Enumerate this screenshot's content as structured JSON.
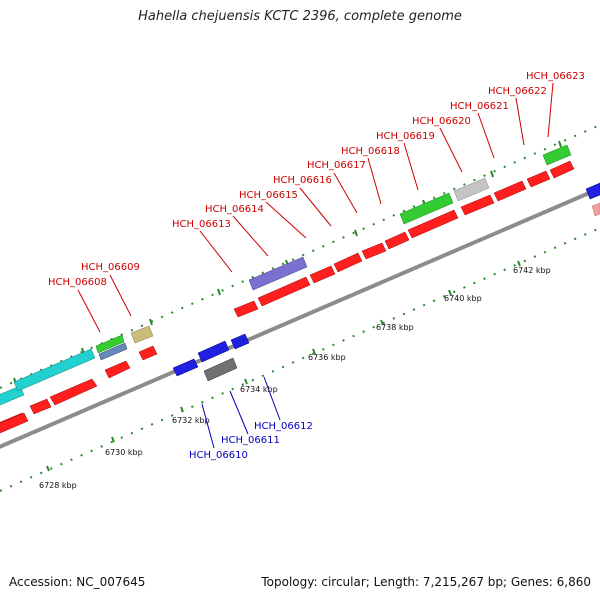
{
  "title": "Hahella chejuensis KCTC 2396, complete genome",
  "footer": {
    "accession": "Accession: NC_007645",
    "summary": "Topology: circular; Length: 7,215,267 bp; Genes: 6,860"
  },
  "colors": {
    "backbone": "#8c8c8c",
    "tick": "#2a8a2a",
    "upper_label": "#cc0000",
    "lower_label": "#0000bb",
    "red": "#ff1f1f",
    "blue": "#2020e0",
    "green": "#33cc33",
    "cyan": "#22d0d0",
    "purple": "#7b6fd0",
    "gray": "#c4c4c4",
    "darkgray": "#707070",
    "khaki": "#c8bd7a",
    "steel": "#6688bb",
    "pink": "#f0a0a0"
  },
  "scale": {
    "ticks": [
      {
        "label": "6728 kbp"
      },
      {
        "label": "6730 kbp"
      },
      {
        "label": "6732 kbp"
      },
      {
        "label": "6734 kbp"
      },
      {
        "label": "6736 kbp"
      },
      {
        "label": "6738 kbp"
      },
      {
        "label": "6740 kbp"
      },
      {
        "label": "6742 kbp"
      }
    ]
  },
  "upper_labels": [
    "HCH_06608",
    "HCH_06609",
    "HCH_06613",
    "HCH_06614",
    "HCH_06615",
    "HCH_06616",
    "HCH_06617",
    "HCH_06618",
    "HCH_06619",
    "HCH_06620",
    "HCH_06621",
    "HCH_06622",
    "HCH_06623"
  ],
  "lower_labels": [
    "HCH_06610",
    "HCH_06611",
    "HCH_06612"
  ]
}
